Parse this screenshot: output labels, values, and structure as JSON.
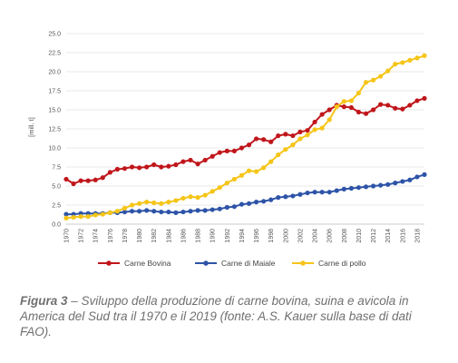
{
  "chart_data": {
    "type": "line",
    "title": "",
    "xlabel": "",
    "ylabel": "[mill. t]",
    "ylim": [
      0,
      25
    ],
    "yticks": [
      "0.0",
      "2.5",
      "5.0",
      "7.5",
      "10.0",
      "12.5",
      "15.0",
      "17.5",
      "20.0",
      "22.5",
      "25.0"
    ],
    "xtick_labels": [
      "1970",
      "1972",
      "1974",
      "1976",
      "1978",
      "1980",
      "1982",
      "1984",
      "1986",
      "1988",
      "1990",
      "1992",
      "1994",
      "1996",
      "1998",
      "2000",
      "2002",
      "2004",
      "2006",
      "2008",
      "2010",
      "2012",
      "2014",
      "2016",
      "2018"
    ],
    "grid": true,
    "legend_position": "bottom",
    "x": [
      1970,
      1971,
      1972,
      1973,
      1974,
      1975,
      1976,
      1977,
      1978,
      1979,
      1980,
      1981,
      1982,
      1983,
      1984,
      1985,
      1986,
      1987,
      1988,
      1989,
      1990,
      1991,
      1992,
      1993,
      1994,
      1995,
      1996,
      1997,
      1998,
      1999,
      2000,
      2001,
      2002,
      2003,
      2004,
      2005,
      2006,
      2007,
      2008,
      2009,
      2010,
      2011,
      2012,
      2013,
      2014,
      2015,
      2016,
      2017,
      2018,
      2019
    ],
    "series": [
      {
        "name": "Carne Bovina",
        "color": "#c0161b",
        "values": [
          5.9,
          5.3,
          5.7,
          5.7,
          5.8,
          6.1,
          6.8,
          7.2,
          7.3,
          7.5,
          7.4,
          7.5,
          7.8,
          7.5,
          7.6,
          7.8,
          8.2,
          8.4,
          7.9,
          8.4,
          8.9,
          9.4,
          9.6,
          9.6,
          10.0,
          10.4,
          11.2,
          11.1,
          10.8,
          11.6,
          11.8,
          11.6,
          12.1,
          12.3,
          13.4,
          14.4,
          15.0,
          15.6,
          15.4,
          15.3,
          14.7,
          14.5,
          15.0,
          15.7,
          15.6,
          15.2,
          15.1,
          15.6,
          16.2,
          16.5
        ]
      },
      {
        "name": "Carne di Maiale",
        "color": "#2e54a8",
        "values": [
          1.3,
          1.3,
          1.4,
          1.4,
          1.4,
          1.4,
          1.5,
          1.5,
          1.6,
          1.7,
          1.7,
          1.8,
          1.7,
          1.6,
          1.6,
          1.5,
          1.6,
          1.7,
          1.8,
          1.8,
          1.9,
          2.0,
          2.2,
          2.3,
          2.6,
          2.7,
          2.9,
          3.0,
          3.2,
          3.5,
          3.6,
          3.7,
          3.9,
          4.1,
          4.2,
          4.2,
          4.2,
          4.4,
          4.6,
          4.7,
          4.8,
          4.9,
          5.0,
          5.1,
          5.2,
          5.4,
          5.6,
          5.8,
          6.2,
          6.5
        ]
      },
      {
        "name": "Carne di pollo",
        "color": "#f5c518",
        "values": [
          0.8,
          0.9,
          1.0,
          1.0,
          1.2,
          1.3,
          1.5,
          1.7,
          2.1,
          2.5,
          2.7,
          2.9,
          2.8,
          2.7,
          2.9,
          3.1,
          3.4,
          3.6,
          3.5,
          3.8,
          4.3,
          4.8,
          5.4,
          5.9,
          6.4,
          7.0,
          6.9,
          7.4,
          8.2,
          9.1,
          9.8,
          10.4,
          11.2,
          11.7,
          12.4,
          12.6,
          13.7,
          15.4,
          16.1,
          16.2,
          17.2,
          18.6,
          18.9,
          19.4,
          20.1,
          21.0,
          21.2,
          21.5,
          21.8,
          22.1
        ]
      }
    ]
  },
  "caption": {
    "figure_label": "Figura 3",
    "text": " – Sviluppo della produzione di carne bovina, suina e avicola in America del Sud tra il 1970 e il 2019 (fonte: A.S. Kauer sulla base di dati FAO)."
  }
}
